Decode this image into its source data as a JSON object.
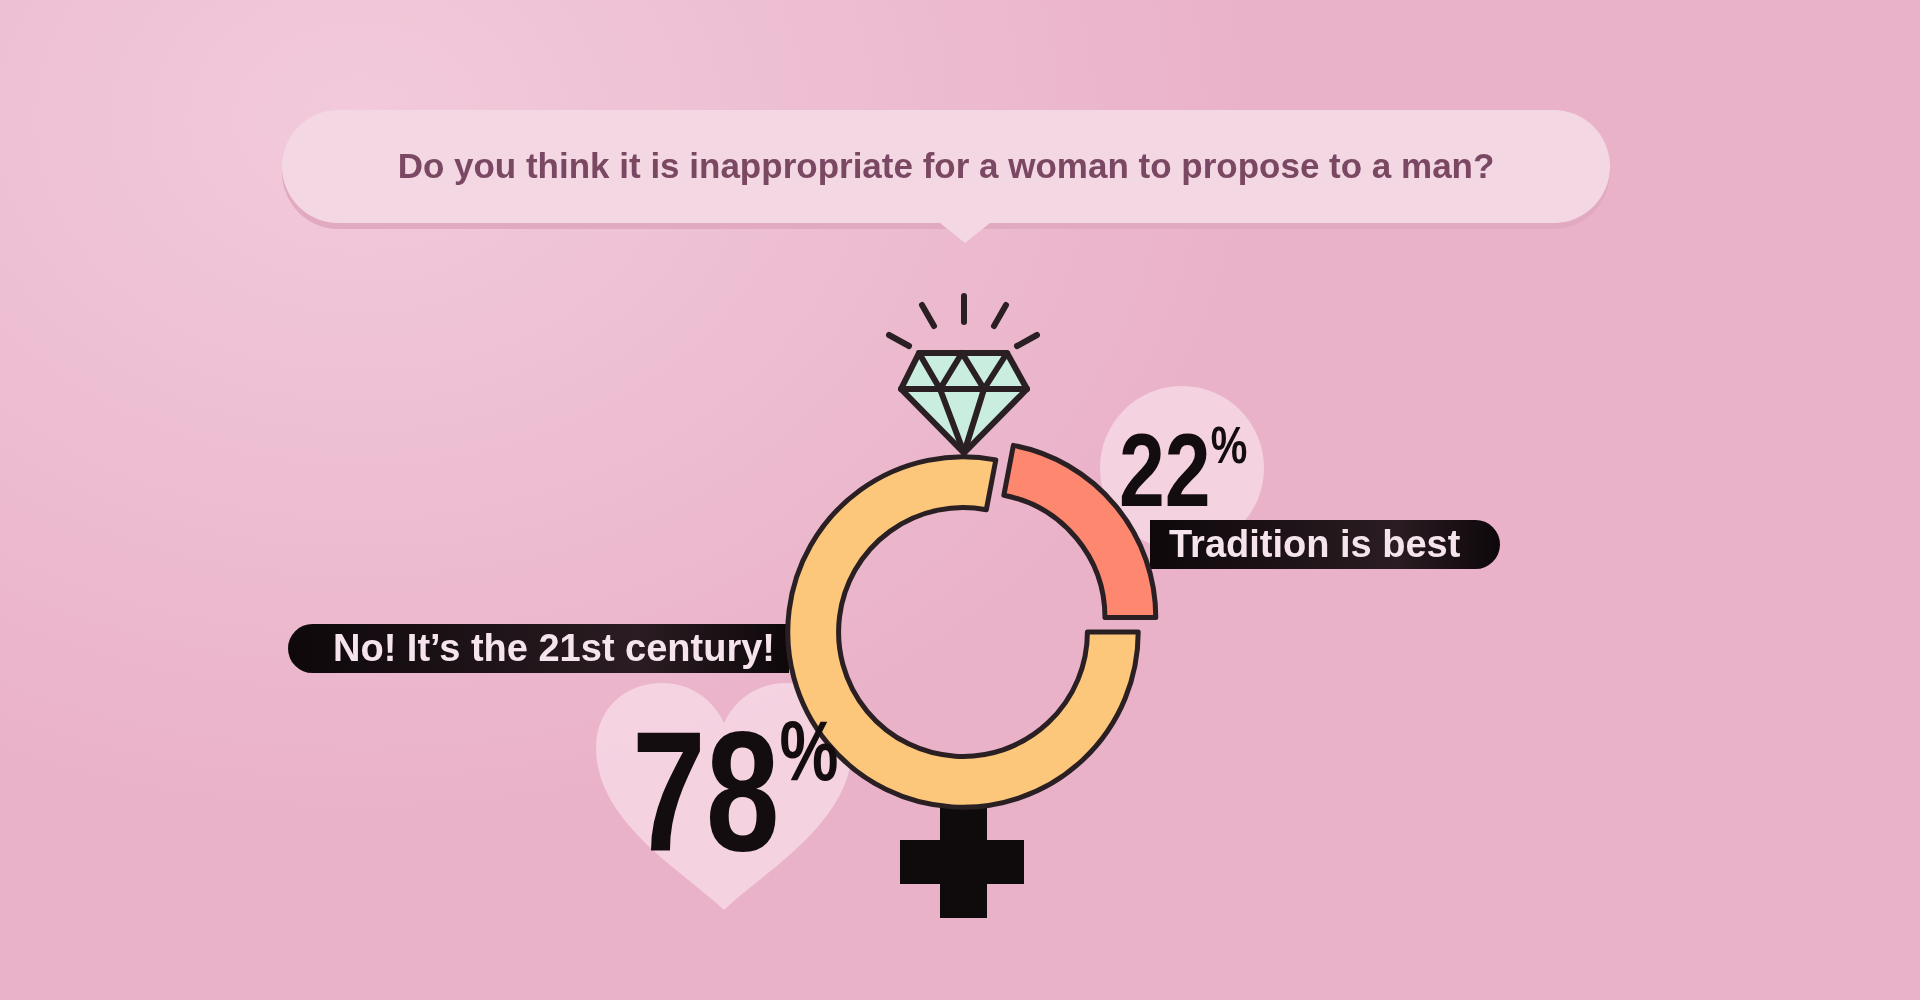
{
  "chart_data": {
    "type": "donut",
    "title": "Do you think it is inappropriate for a woman to propose to a man?",
    "categories": [
      "No! It’s the 21st century!",
      "Tradition is best"
    ],
    "values": [
      78,
      22
    ],
    "colors": [
      "#fcc77a",
      "#fd876f"
    ],
    "value_labels": [
      "78%",
      "22%"
    ]
  }
}
